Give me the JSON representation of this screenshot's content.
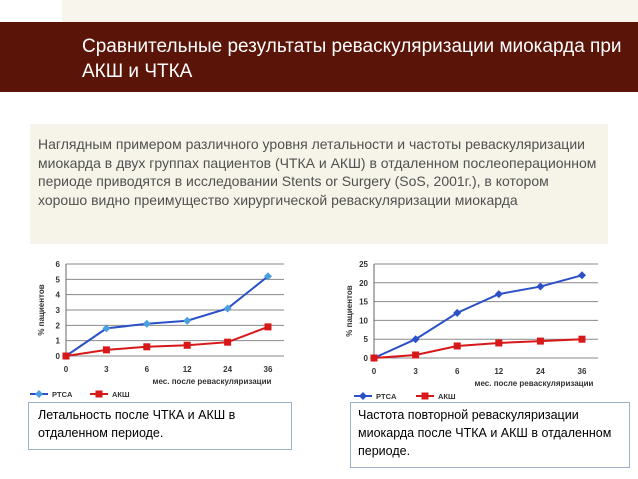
{
  "slide": {
    "title": "Сравнительные результаты реваскуляризации миокарда при АКШ и ЧТКА",
    "intro": "Наглядным примером различного уровня летальности и частоты реваскуляризации миокарда в двух группах пациентов (ЧТКА и АКШ) в отдаленном послеоперационном периоде приводятся в исследовании Stents or Surgery (SoS, 2001г.), в котором хорошо видно преимущество хирургической реваскуляризации миокарда",
    "caption_left": "Летальность после ЧТКА и АКШ в отдаленном периоде.",
    "caption_right": "Частота повторной реваскуляризации миокарда  после ЧТКА и АКШ в отдаленном периоде."
  },
  "colors": {
    "banner": "#5a1408",
    "ptca": "#2b50c8",
    "cabg": "#d81818",
    "ptca_marker_left": "#4a9fe0"
  },
  "chart_data": [
    {
      "type": "line",
      "categories": [
        "0",
        "3",
        "6",
        "12",
        "24",
        "36"
      ],
      "xlabel": "мес. после реваскуляризации",
      "ylabel": "% пациентов",
      "ylim": [
        0,
        6
      ],
      "yticks": [
        "0",
        "1",
        "2",
        "3",
        "4",
        "5",
        "6"
      ],
      "grid": true,
      "legend_position": "bottom-left",
      "series": [
        {
          "name": "PTCA",
          "values": [
            0,
            1.8,
            2.1,
            2.3,
            3.1,
            5.2
          ]
        },
        {
          "name": "АКШ",
          "values": [
            0,
            0.4,
            0.6,
            0.7,
            0.9,
            1.9
          ]
        }
      ]
    },
    {
      "type": "line",
      "categories": [
        "0",
        "3",
        "6",
        "12",
        "24",
        "36"
      ],
      "xlabel": "мес. после реваскуляризации",
      "ylabel": "% пациентов",
      "ylim": [
        0,
        25
      ],
      "yticks": [
        "0",
        "5",
        "10",
        "15",
        "20",
        "25"
      ],
      "grid": true,
      "legend_position": "bottom-left",
      "series": [
        {
          "name": "PTCA",
          "values": [
            0,
            5,
            12,
            17,
            19,
            22
          ]
        },
        {
          "name": "АКШ",
          "values": [
            0,
            0.8,
            3.2,
            4,
            4.5,
            5
          ]
        }
      ]
    }
  ]
}
